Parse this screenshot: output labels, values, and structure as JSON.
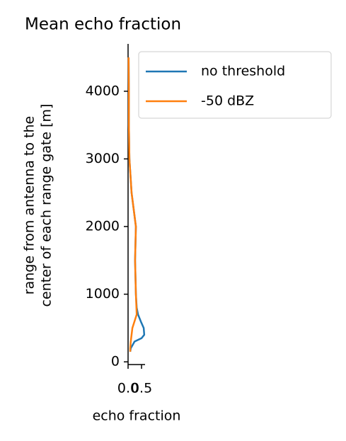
{
  "chart_data": {
    "type": "line",
    "title": "Mean echo fraction",
    "xlabel": "echo fraction",
    "ylabel": [
      "range from antenna to the",
      "center of each range gate [m]"
    ],
    "xlim": [
      0,
      0.63
    ],
    "xticks": [
      {
        "value": 0,
        "label": "0.0"
      },
      {
        "value": 0.5,
        "label": "0.5"
      }
    ],
    "ylim": [
      -40,
      4700
    ],
    "yticks": [
      0,
      1000,
      2000,
      3000,
      4000
    ],
    "legend": "upper left outside",
    "series": [
      {
        "name": "no threshold",
        "color": "#1f77b4",
        "x": [
          0.08,
          0.1,
          0.24,
          0.5,
          0.6,
          0.58,
          0.47,
          0.37,
          0.32,
          0.29,
          0.26,
          0.29,
          0.13,
          0.05,
          0.03,
          0.03,
          0.02
        ],
        "values": [
          150,
          200,
          300,
          350,
          400,
          500,
          600,
          700,
          800,
          1000,
          1500,
          2000,
          2500,
          3000,
          3500,
          4000,
          4500
        ]
      },
      {
        "name": "-50 dBZ",
        "color": "#ff7f0e",
        "x": [
          0.08,
          0.08,
          0.1,
          0.13,
          0.16,
          0.24,
          0.32,
          0.31,
          0.29,
          0.26,
          0.29,
          0.13,
          0.05,
          0.03,
          0.03,
          0.02
        ],
        "values": [
          150,
          200,
          300,
          400,
          500,
          600,
          700,
          800,
          1000,
          1500,
          2000,
          2500,
          3000,
          3500,
          4000,
          4500
        ]
      }
    ]
  }
}
